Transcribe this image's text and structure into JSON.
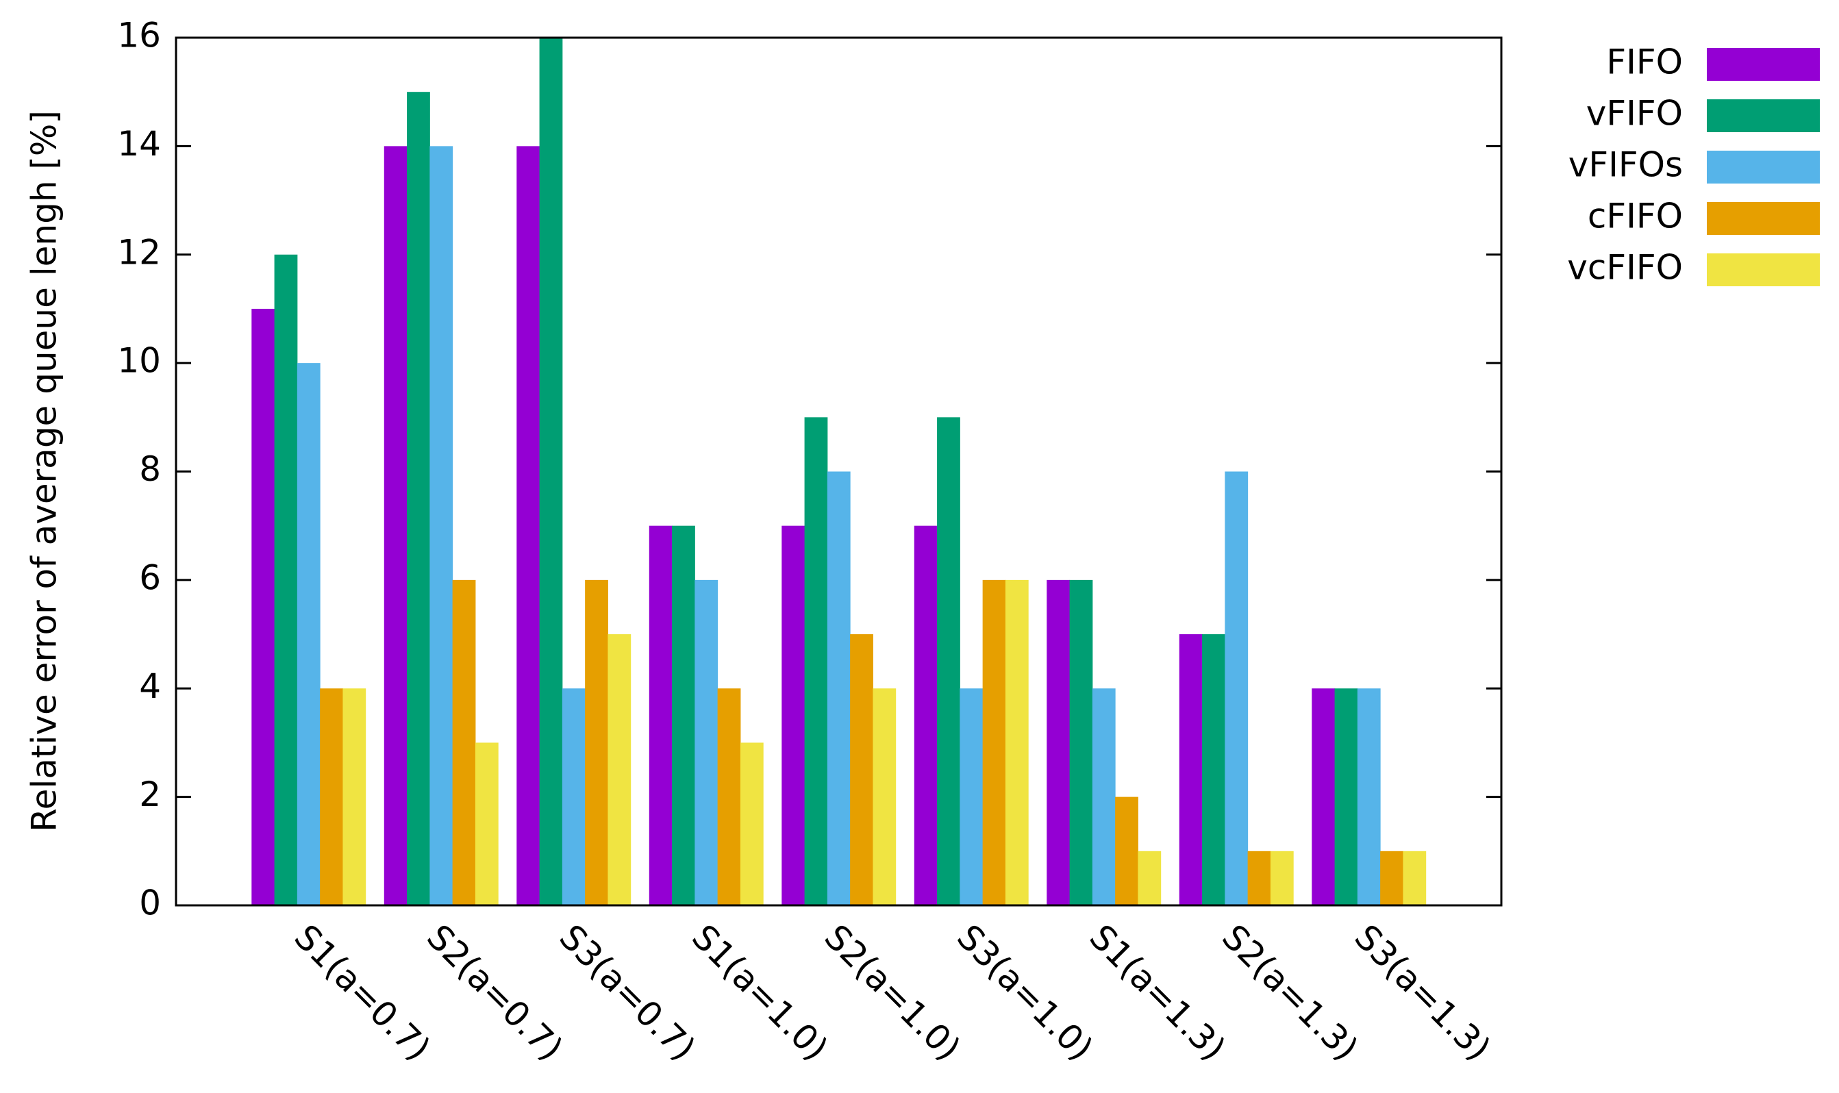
{
  "chart_data": {
    "type": "bar",
    "ylabel": "Relative error of average queue lengh [%]",
    "categories": [
      "S1(a=0.7)",
      "S2(a=0.7)",
      "S3(a=0.7)",
      "S1(a=1.0)",
      "S2(a=1.0)",
      "S3(a=1.0)",
      "S1(a=1.3)",
      "S2(a=1.3)",
      "S3(a=1.3)"
    ],
    "series": [
      {
        "name": "FIFO",
        "color": "#9400d3",
        "values": [
          11,
          14,
          14,
          7,
          7,
          7,
          6,
          5,
          4
        ]
      },
      {
        "name": "vFIFO",
        "color": "#009e73",
        "values": [
          12,
          15,
          16,
          7,
          9,
          9,
          6,
          5,
          4
        ]
      },
      {
        "name": "vFIFOs",
        "color": "#56b4e9",
        "values": [
          10,
          14,
          4,
          6,
          8,
          4,
          4,
          8,
          4
        ]
      },
      {
        "name": "cFIFO",
        "color": "#e69f00",
        "values": [
          4,
          6,
          6,
          4,
          5,
          6,
          2,
          1,
          1
        ]
      },
      {
        "name": "vcFIFO",
        "color": "#f0e442",
        "values": [
          4,
          3,
          5,
          3,
          4,
          6,
          1,
          1,
          1
        ]
      }
    ],
    "ylim": [
      0,
      16
    ],
    "yticks": [
      0,
      2,
      4,
      6,
      8,
      10,
      12,
      14,
      16
    ],
    "grid": false
  }
}
